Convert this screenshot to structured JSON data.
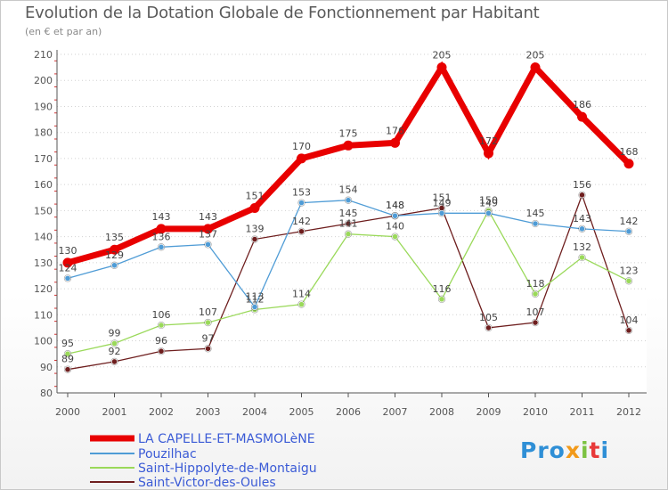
{
  "chart_data": {
    "type": "line",
    "title": "Evolution de la Dotation Globale de Fonctionnement par Habitant",
    "subtitle": "(en € et par an)",
    "xlabel": "",
    "ylabel": "",
    "ylim": [
      80,
      210
    ],
    "y_ticks": [
      "80",
      "90",
      "100",
      "110",
      "120",
      "130",
      "140",
      "150",
      "160",
      "170",
      "180",
      "190",
      "200",
      "210"
    ],
    "x": [
      "2000",
      "2001",
      "2002",
      "2003",
      "2004",
      "2005",
      "2006",
      "2007",
      "2008",
      "2009",
      "2010",
      "2011",
      "2012"
    ],
    "grid": "horizontal-dotted",
    "legend_position": "bottom-left",
    "series": [
      {
        "name": "LA CAPELLE-ET-MASMOLèNE",
        "color": "#e80000",
        "values": [
          130,
          135,
          143,
          143,
          151,
          170,
          175,
          176,
          205,
          172,
          205,
          186,
          168
        ],
        "labels": [
          "130",
          "135",
          "143",
          "143",
          "151",
          "170",
          "175",
          "176",
          "205",
          "172",
          "205",
          "186",
          "168"
        ]
      },
      {
        "name": "Pouzilhac",
        "color": "#4f9cd6",
        "values": [
          124,
          129,
          136,
          137,
          113,
          153,
          154,
          148,
          149,
          149,
          145,
          143,
          142
        ],
        "labels": [
          "124",
          "129",
          "136",
          "137",
          "113",
          "153",
          "154",
          "148",
          "149",
          "149",
          "145",
          "143",
          "142"
        ]
      },
      {
        "name": "Saint-Hippolyte-de-Montaigu",
        "color": "#9ad95a",
        "values": [
          95,
          99,
          106,
          107,
          112,
          114,
          141,
          140,
          116,
          150,
          118,
          132,
          123
        ],
        "labels": [
          "95",
          "99",
          "106",
          "107",
          "112",
          "114",
          "141",
          "140",
          "116",
          "150",
          "118",
          "132",
          "123"
        ]
      },
      {
        "name": "Saint-Victor-des-Oules",
        "color": "#6e1e1e",
        "values": [
          89,
          92,
          96,
          97,
          139,
          142,
          145,
          148,
          151,
          105,
          107,
          156,
          104
        ],
        "labels": [
          "89",
          "92",
          "96",
          "97",
          "139",
          "142",
          "145",
          "148",
          "151",
          "105",
          "107",
          "156",
          "104"
        ]
      }
    ]
  },
  "branding": {
    "logo_letters": [
      "Pro",
      "x",
      "i",
      "t",
      "i"
    ]
  }
}
